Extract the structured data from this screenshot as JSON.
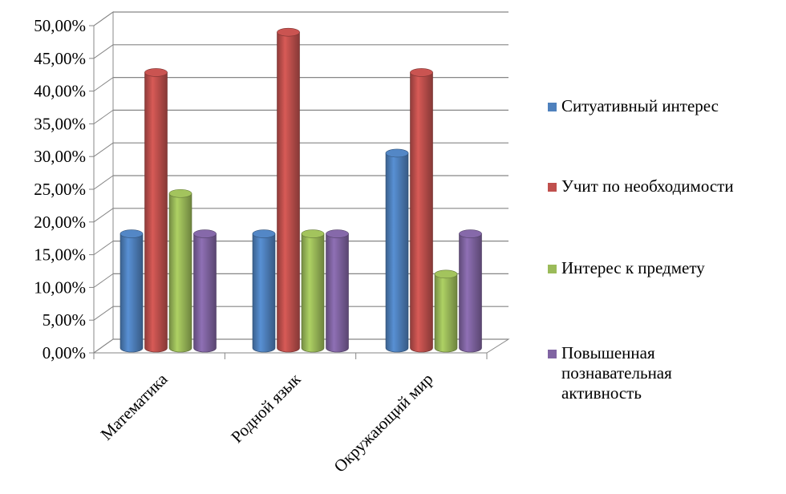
{
  "chart_data": {
    "type": "bar",
    "title": "",
    "xlabel": "",
    "ylabel": "",
    "categories": [
      "Математика",
      "Родной язык",
      "Окружающий мир"
    ],
    "series": [
      {
        "name": "Ситуативный интерес",
        "color": "#4f81bd",
        "values": [
          17,
          17,
          29
        ]
      },
      {
        "name": "Учит по необходимости",
        "color": "#c0504d",
        "values": [
          41,
          47,
          41
        ]
      },
      {
        "name": "Интерес к предмету",
        "color": "#9bbb59",
        "values": [
          23,
          17,
          11
        ]
      },
      {
        "name": "Повышенная познавательная активность",
        "color": "#8064a2",
        "values": [
          17,
          17,
          17
        ]
      }
    ],
    "ylim": [
      0,
      50
    ],
    "yticks": [
      "0,00%",
      "5,00%",
      "10,00%",
      "15,00%",
      "20,00%",
      "25,00%",
      "30,00%",
      "35,00%",
      "40,00%",
      "45,00%",
      "50,00%"
    ],
    "grid": true,
    "legend_position": "right",
    "style": "3d-cylinder"
  }
}
